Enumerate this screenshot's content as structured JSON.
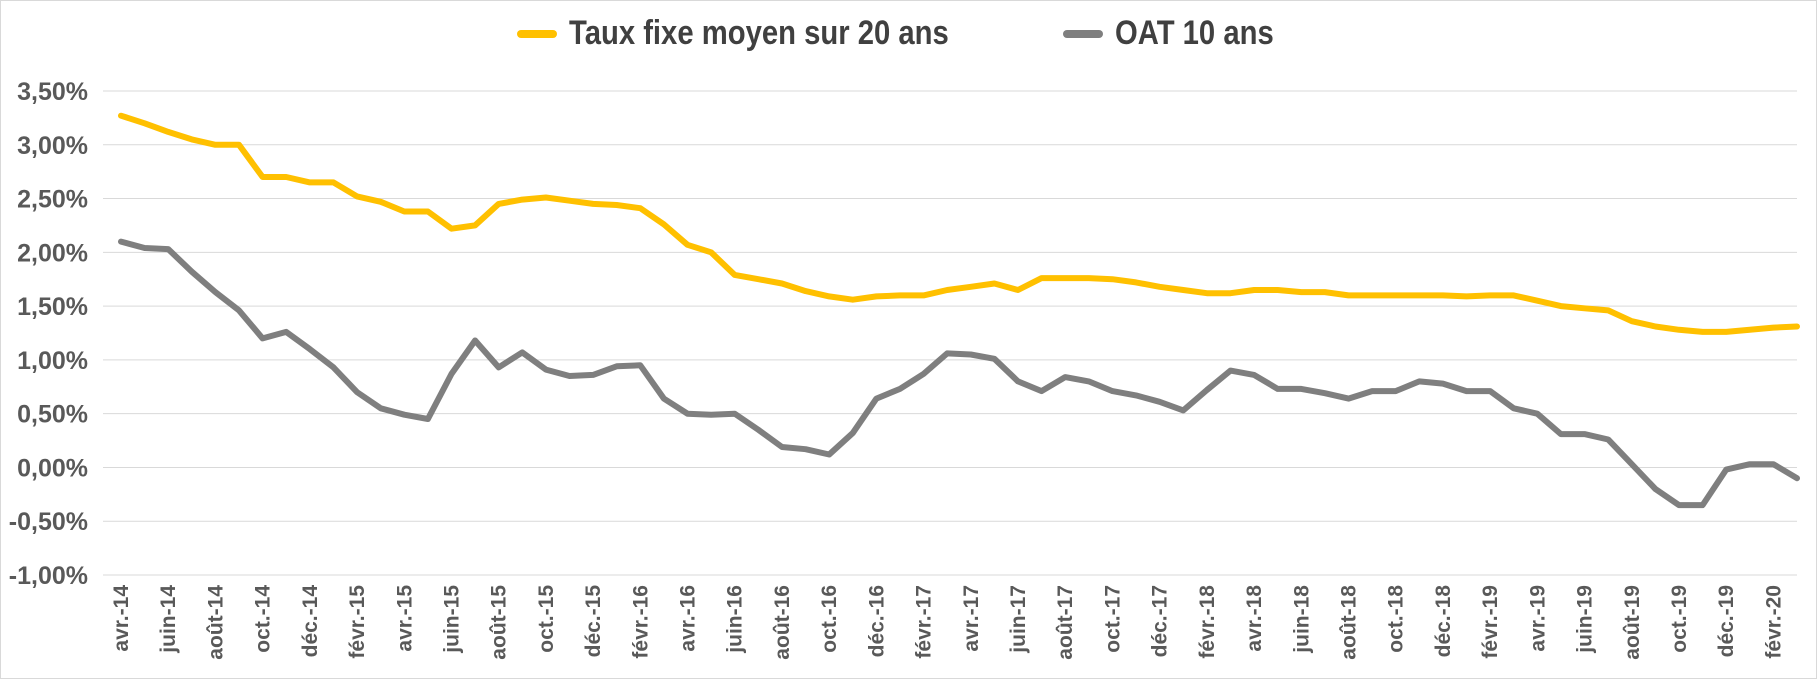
{
  "colors": {
    "series_fixed": "#FFC000",
    "series_oat": "#7F7F7F",
    "grid": "#D9D9D9",
    "text": "#595959"
  },
  "chart_data": {
    "type": "line",
    "title": "",
    "xlabel": "",
    "ylabel": "",
    "ylim": [
      -1.0,
      3.5
    ],
    "yticks": [
      "3,50%",
      "3,00%",
      "2,50%",
      "2,00%",
      "1,50%",
      "1,00%",
      "0,50%",
      "0,00%",
      "-0,50%",
      "-1,00%"
    ],
    "grid": true,
    "legend": "top-center",
    "x_tick_labels": [
      "avr.-14",
      "juin-14",
      "août-14",
      "oct.-14",
      "déc.-14",
      "févr.-15",
      "avr.-15",
      "juin-15",
      "août-15",
      "oct.-15",
      "déc.-15",
      "févr.-16",
      "avr.-16",
      "juin-16",
      "août-16",
      "oct.-16",
      "déc.-16",
      "févr.-17",
      "avr.-17",
      "juin-17",
      "août-17",
      "oct.-17",
      "déc.-17",
      "févr.-18",
      "avr.-18",
      "juin-18",
      "août-18",
      "oct.-18",
      "déc.-18",
      "févr.-19",
      "avr.-19",
      "juin-19",
      "août-19",
      "oct.-19",
      "déc.-19",
      "févr.-20"
    ],
    "x_first": "avr.-14",
    "x_last": "févr.-20",
    "series": [
      {
        "name": "Taux fixe moyen sur 20 ans",
        "color": "#FFC000",
        "values": [
          3.27,
          3.2,
          3.12,
          3.05,
          3.0,
          3.0,
          2.7,
          2.7,
          2.65,
          2.65,
          2.52,
          2.47,
          2.38,
          2.38,
          2.22,
          2.25,
          2.45,
          2.49,
          2.51,
          2.48,
          2.45,
          2.44,
          2.41,
          2.26,
          2.07,
          2.0,
          1.79,
          1.75,
          1.71,
          1.64,
          1.59,
          1.56,
          1.59,
          1.6,
          1.6,
          1.65,
          1.68,
          1.71,
          1.65,
          1.76,
          1.76,
          1.76,
          1.75,
          1.72,
          1.68,
          1.65,
          1.62,
          1.62,
          1.65,
          1.65,
          1.63,
          1.63,
          1.6,
          1.6,
          1.6,
          1.6,
          1.6,
          1.59,
          1.6,
          1.6,
          1.55,
          1.5,
          1.48,
          1.46,
          1.36,
          1.31,
          1.28,
          1.26,
          1.26,
          1.28,
          1.3,
          1.31
        ]
      },
      {
        "name": "OAT 10 ans",
        "color": "#7F7F7F",
        "values": [
          2.1,
          2.04,
          2.03,
          1.82,
          1.63,
          1.46,
          1.2,
          1.26,
          1.1,
          0.93,
          0.7,
          0.55,
          0.49,
          0.45,
          0.87,
          1.18,
          0.93,
          1.07,
          0.91,
          0.85,
          0.86,
          0.94,
          0.95,
          0.64,
          0.5,
          0.49,
          0.5,
          0.35,
          0.19,
          0.17,
          0.12,
          0.32,
          0.64,
          0.73,
          0.87,
          1.06,
          1.05,
          1.01,
          0.8,
          0.71,
          0.84,
          0.8,
          0.71,
          0.67,
          0.61,
          0.53,
          0.72,
          0.9,
          0.86,
          0.73,
          0.73,
          0.69,
          0.64,
          0.71,
          0.71,
          0.8,
          0.78,
          0.71,
          0.71,
          0.55,
          0.5,
          0.31,
          0.31,
          0.26,
          0.03,
          -0.2,
          -0.35,
          -0.35,
          -0.02,
          0.03,
          0.03,
          -0.1
        ]
      }
    ]
  }
}
